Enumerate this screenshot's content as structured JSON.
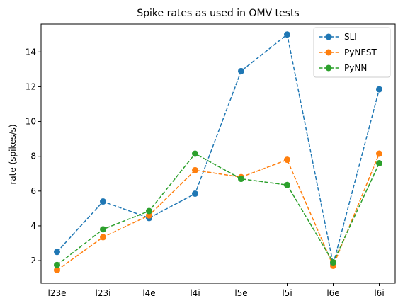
{
  "chart_data": {
    "type": "line",
    "title": "Spike rates as used in OMV tests",
    "xlabel": "",
    "ylabel": "rate (spikes/s)",
    "categories": [
      "l23e",
      "l23i",
      "l4e",
      "l4i",
      "l5e",
      "l5i",
      "l6e",
      "l6i"
    ],
    "ylim": [
      0.7,
      15.6
    ],
    "yticks": [
      2,
      4,
      6,
      8,
      10,
      12,
      14
    ],
    "grid": false,
    "legend_position": "top-right",
    "series": [
      {
        "name": "SLI",
        "color": "#1f77b4",
        "values": [
          2.5,
          5.4,
          4.45,
          5.85,
          12.9,
          15.0,
          1.8,
          11.85
        ]
      },
      {
        "name": "PyNEST",
        "color": "#ff7f0e",
        "values": [
          1.45,
          3.35,
          4.6,
          7.2,
          6.8,
          7.8,
          1.7,
          8.15
        ]
      },
      {
        "name": "PyNN",
        "color": "#2ca02c",
        "values": [
          1.75,
          3.8,
          4.85,
          8.15,
          6.7,
          6.35,
          1.9,
          7.6
        ]
      }
    ]
  }
}
